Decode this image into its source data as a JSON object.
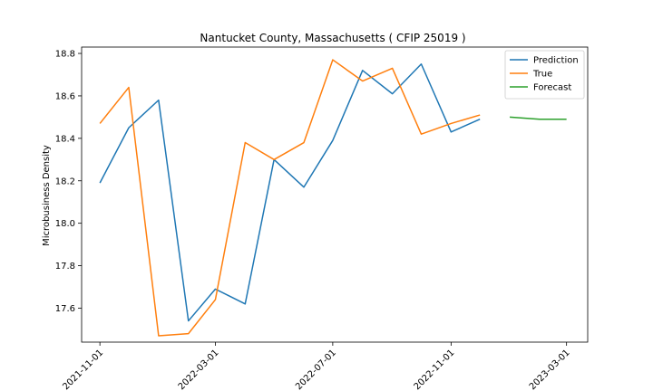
{
  "chart_data": {
    "type": "line",
    "title": "Nantucket County, Massachusetts ( CFIP 25019 )",
    "xlabel": "",
    "ylabel": "Microbusiness Density",
    "ylim": [
      17.44,
      18.83
    ],
    "xlim": [
      "2021-10-13",
      "2023-03-23"
    ],
    "yticks": [
      17.6,
      17.8,
      18.0,
      18.2,
      18.4,
      18.6,
      18.8
    ],
    "ytick_labels": [
      "17.6",
      "17.8",
      "18.0",
      "18.2",
      "18.4",
      "18.6",
      "18.8"
    ],
    "xticks": [
      "2021-11-01",
      "2022-03-01",
      "2022-07-01",
      "2022-11-01",
      "2023-03-01"
    ],
    "grid": false,
    "legend_position": "top-right",
    "series": [
      {
        "name": "Prediction",
        "color": "#1f77b4",
        "x": [
          "2021-11-01",
          "2021-12-01",
          "2022-01-01",
          "2022-02-01",
          "2022-03-01",
          "2022-04-01",
          "2022-05-01",
          "2022-06-01",
          "2022-07-01",
          "2022-08-01",
          "2022-09-01",
          "2022-10-01",
          "2022-11-01",
          "2022-12-01"
        ],
        "values": [
          18.19,
          18.45,
          18.58,
          17.54,
          17.69,
          17.62,
          18.3,
          18.17,
          18.39,
          18.72,
          18.61,
          18.75,
          18.43,
          18.49
        ]
      },
      {
        "name": "True",
        "color": "#ff7f0e",
        "x": [
          "2021-11-01",
          "2021-12-01",
          "2022-01-01",
          "2022-02-01",
          "2022-03-01",
          "2022-04-01",
          "2022-05-01",
          "2022-06-01",
          "2022-07-01",
          "2022-08-01",
          "2022-09-01",
          "2022-10-01",
          "2022-11-01",
          "2022-12-01"
        ],
        "values": [
          18.47,
          18.64,
          17.47,
          17.48,
          17.64,
          18.38,
          18.3,
          18.38,
          18.77,
          18.67,
          18.73,
          18.42,
          18.47,
          18.51
        ]
      },
      {
        "name": "Forecast",
        "color": "#2ca02c",
        "x": [
          "2023-01-01",
          "2023-02-01",
          "2023-03-01"
        ],
        "values": [
          18.5,
          18.49,
          18.49
        ]
      }
    ]
  }
}
